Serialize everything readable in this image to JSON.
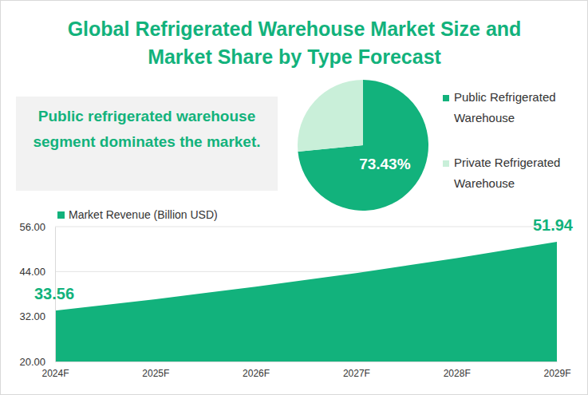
{
  "chart_data": [
    {
      "type": "pie",
      "title": "Global Refrigerated Warehouse Market Size and Market Share by Type Forecast",
      "annotations": [
        "Public refrigerated warehouse segment dominates the market."
      ],
      "categories": [
        "Public Refrigerated Warehouse",
        "Private Refrigerated Warehouse"
      ],
      "values": [
        73.43,
        26.57
      ],
      "value_labels": [
        "73.43%",
        null
      ],
      "colors": [
        "#12b27c",
        "#c9efd9"
      ],
      "legend": "right"
    },
    {
      "type": "area",
      "categories": [
        "2024F",
        "2025F",
        "2026F",
        "2027F",
        "2028F",
        "2029F"
      ],
      "series": [
        {
          "name": "Market Revenue (Billion USD)",
          "color": "#12b27c",
          "values": [
            33.56,
            36.62,
            39.96,
            43.6,
            47.58,
            51.94
          ]
        }
      ],
      "value_labels": [
        "33.56",
        null,
        null,
        null,
        null,
        "51.94"
      ],
      "ylim": [
        20,
        56
      ],
      "yticks": [
        {
          "value": 20,
          "label": "20.00"
        },
        {
          "value": 32,
          "label": "32.00"
        },
        {
          "value": 44,
          "label": "44.00"
        },
        {
          "value": 56,
          "label": "56.00"
        }
      ],
      "grid": true,
      "legend": "top-left"
    }
  ]
}
